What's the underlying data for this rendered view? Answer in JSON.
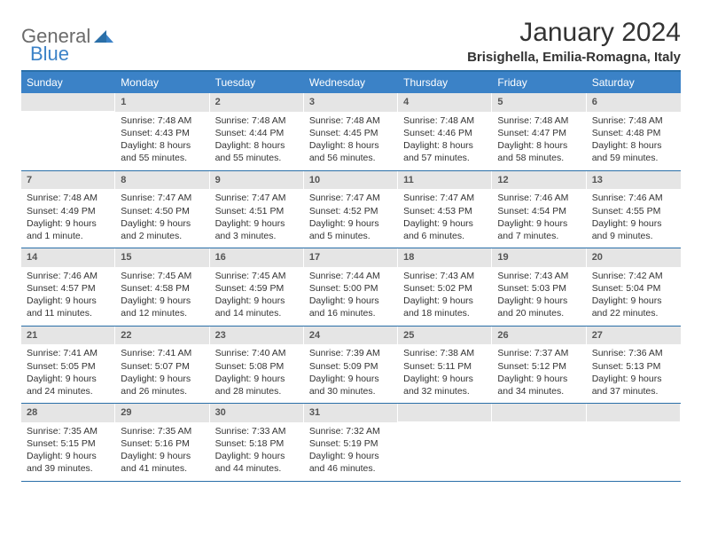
{
  "brand": {
    "general": "General",
    "blue": "Blue"
  },
  "title": "January 2024",
  "location": "Brisighella, Emilia-Romagna, Italy",
  "colors": {
    "header_bg": "#3b82c7",
    "header_text": "#ffffff",
    "border": "#2a6fa8",
    "daynum_bg": "#e5e5e5",
    "text": "#333333",
    "logo_gray": "#6b6b6b",
    "logo_blue": "#3b82c7"
  },
  "day_names": [
    "Sunday",
    "Monday",
    "Tuesday",
    "Wednesday",
    "Thursday",
    "Friday",
    "Saturday"
  ],
  "weeks": [
    [
      {
        "n": "",
        "sr": "",
        "ss": "",
        "d1": "",
        "d2": ""
      },
      {
        "n": "1",
        "sr": "Sunrise: 7:48 AM",
        "ss": "Sunset: 4:43 PM",
        "d1": "Daylight: 8 hours",
        "d2": "and 55 minutes."
      },
      {
        "n": "2",
        "sr": "Sunrise: 7:48 AM",
        "ss": "Sunset: 4:44 PM",
        "d1": "Daylight: 8 hours",
        "d2": "and 55 minutes."
      },
      {
        "n": "3",
        "sr": "Sunrise: 7:48 AM",
        "ss": "Sunset: 4:45 PM",
        "d1": "Daylight: 8 hours",
        "d2": "and 56 minutes."
      },
      {
        "n": "4",
        "sr": "Sunrise: 7:48 AM",
        "ss": "Sunset: 4:46 PM",
        "d1": "Daylight: 8 hours",
        "d2": "and 57 minutes."
      },
      {
        "n": "5",
        "sr": "Sunrise: 7:48 AM",
        "ss": "Sunset: 4:47 PM",
        "d1": "Daylight: 8 hours",
        "d2": "and 58 minutes."
      },
      {
        "n": "6",
        "sr": "Sunrise: 7:48 AM",
        "ss": "Sunset: 4:48 PM",
        "d1": "Daylight: 8 hours",
        "d2": "and 59 minutes."
      }
    ],
    [
      {
        "n": "7",
        "sr": "Sunrise: 7:48 AM",
        "ss": "Sunset: 4:49 PM",
        "d1": "Daylight: 9 hours",
        "d2": "and 1 minute."
      },
      {
        "n": "8",
        "sr": "Sunrise: 7:47 AM",
        "ss": "Sunset: 4:50 PM",
        "d1": "Daylight: 9 hours",
        "d2": "and 2 minutes."
      },
      {
        "n": "9",
        "sr": "Sunrise: 7:47 AM",
        "ss": "Sunset: 4:51 PM",
        "d1": "Daylight: 9 hours",
        "d2": "and 3 minutes."
      },
      {
        "n": "10",
        "sr": "Sunrise: 7:47 AM",
        "ss": "Sunset: 4:52 PM",
        "d1": "Daylight: 9 hours",
        "d2": "and 5 minutes."
      },
      {
        "n": "11",
        "sr": "Sunrise: 7:47 AM",
        "ss": "Sunset: 4:53 PM",
        "d1": "Daylight: 9 hours",
        "d2": "and 6 minutes."
      },
      {
        "n": "12",
        "sr": "Sunrise: 7:46 AM",
        "ss": "Sunset: 4:54 PM",
        "d1": "Daylight: 9 hours",
        "d2": "and 7 minutes."
      },
      {
        "n": "13",
        "sr": "Sunrise: 7:46 AM",
        "ss": "Sunset: 4:55 PM",
        "d1": "Daylight: 9 hours",
        "d2": "and 9 minutes."
      }
    ],
    [
      {
        "n": "14",
        "sr": "Sunrise: 7:46 AM",
        "ss": "Sunset: 4:57 PM",
        "d1": "Daylight: 9 hours",
        "d2": "and 11 minutes."
      },
      {
        "n": "15",
        "sr": "Sunrise: 7:45 AM",
        "ss": "Sunset: 4:58 PM",
        "d1": "Daylight: 9 hours",
        "d2": "and 12 minutes."
      },
      {
        "n": "16",
        "sr": "Sunrise: 7:45 AM",
        "ss": "Sunset: 4:59 PM",
        "d1": "Daylight: 9 hours",
        "d2": "and 14 minutes."
      },
      {
        "n": "17",
        "sr": "Sunrise: 7:44 AM",
        "ss": "Sunset: 5:00 PM",
        "d1": "Daylight: 9 hours",
        "d2": "and 16 minutes."
      },
      {
        "n": "18",
        "sr": "Sunrise: 7:43 AM",
        "ss": "Sunset: 5:02 PM",
        "d1": "Daylight: 9 hours",
        "d2": "and 18 minutes."
      },
      {
        "n": "19",
        "sr": "Sunrise: 7:43 AM",
        "ss": "Sunset: 5:03 PM",
        "d1": "Daylight: 9 hours",
        "d2": "and 20 minutes."
      },
      {
        "n": "20",
        "sr": "Sunrise: 7:42 AM",
        "ss": "Sunset: 5:04 PM",
        "d1": "Daylight: 9 hours",
        "d2": "and 22 minutes."
      }
    ],
    [
      {
        "n": "21",
        "sr": "Sunrise: 7:41 AM",
        "ss": "Sunset: 5:05 PM",
        "d1": "Daylight: 9 hours",
        "d2": "and 24 minutes."
      },
      {
        "n": "22",
        "sr": "Sunrise: 7:41 AM",
        "ss": "Sunset: 5:07 PM",
        "d1": "Daylight: 9 hours",
        "d2": "and 26 minutes."
      },
      {
        "n": "23",
        "sr": "Sunrise: 7:40 AM",
        "ss": "Sunset: 5:08 PM",
        "d1": "Daylight: 9 hours",
        "d2": "and 28 minutes."
      },
      {
        "n": "24",
        "sr": "Sunrise: 7:39 AM",
        "ss": "Sunset: 5:09 PM",
        "d1": "Daylight: 9 hours",
        "d2": "and 30 minutes."
      },
      {
        "n": "25",
        "sr": "Sunrise: 7:38 AM",
        "ss": "Sunset: 5:11 PM",
        "d1": "Daylight: 9 hours",
        "d2": "and 32 minutes."
      },
      {
        "n": "26",
        "sr": "Sunrise: 7:37 AM",
        "ss": "Sunset: 5:12 PM",
        "d1": "Daylight: 9 hours",
        "d2": "and 34 minutes."
      },
      {
        "n": "27",
        "sr": "Sunrise: 7:36 AM",
        "ss": "Sunset: 5:13 PM",
        "d1": "Daylight: 9 hours",
        "d2": "and 37 minutes."
      }
    ],
    [
      {
        "n": "28",
        "sr": "Sunrise: 7:35 AM",
        "ss": "Sunset: 5:15 PM",
        "d1": "Daylight: 9 hours",
        "d2": "and 39 minutes."
      },
      {
        "n": "29",
        "sr": "Sunrise: 7:35 AM",
        "ss": "Sunset: 5:16 PM",
        "d1": "Daylight: 9 hours",
        "d2": "and 41 minutes."
      },
      {
        "n": "30",
        "sr": "Sunrise: 7:33 AM",
        "ss": "Sunset: 5:18 PM",
        "d1": "Daylight: 9 hours",
        "d2": "and 44 minutes."
      },
      {
        "n": "31",
        "sr": "Sunrise: 7:32 AM",
        "ss": "Sunset: 5:19 PM",
        "d1": "Daylight: 9 hours",
        "d2": "and 46 minutes."
      },
      {
        "n": "",
        "sr": "",
        "ss": "",
        "d1": "",
        "d2": ""
      },
      {
        "n": "",
        "sr": "",
        "ss": "",
        "d1": "",
        "d2": ""
      },
      {
        "n": "",
        "sr": "",
        "ss": "",
        "d1": "",
        "d2": ""
      }
    ]
  ]
}
